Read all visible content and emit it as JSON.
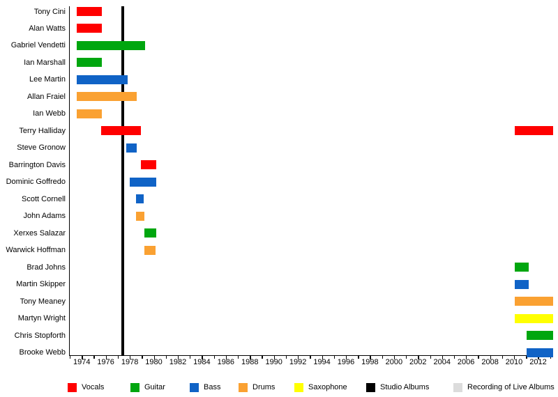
{
  "chart_data": {
    "type": "bar",
    "subtype": "gantt-member-timeline",
    "title": "",
    "xlabel": "",
    "ylabel": "",
    "grid": false,
    "legend_position": "bottom",
    "xlim": [
      1973,
      2013.25
    ],
    "x_minor_tick_interval": 1,
    "x_major_ticks": [
      1974,
      1976,
      1978,
      1980,
      1982,
      1984,
      1986,
      1988,
      1990,
      1992,
      1994,
      1996,
      1998,
      2000,
      2002,
      2004,
      2006,
      2008,
      2010,
      2012
    ],
    "colors": {
      "Vocals": "#FF0000",
      "Guitar": "#00A60F",
      "Bass": "#1063C6",
      "Drums": "#FAA132",
      "Saxophone": "#FFFF00",
      "Studio Albums": "#000000",
      "Recording of Live Albums": "#DCDCDC"
    },
    "legend": [
      {
        "label": "Vocals",
        "color": "#FF0000"
      },
      {
        "label": "Guitar",
        "color": "#00A60F"
      },
      {
        "label": "Bass",
        "color": "#1063C6"
      },
      {
        "label": "Drums",
        "color": "#FAA132"
      },
      {
        "label": "Saxophone",
        "color": "#FFFF00"
      },
      {
        "label": "Studio Albums",
        "color": "#000000"
      },
      {
        "label": "Recording of Live Albums",
        "color": "#DCDCDC"
      }
    ],
    "album_lines": [
      {
        "type": "Studio Albums",
        "year": 1977.4
      }
    ],
    "rows": [
      {
        "name": "Tony Cini",
        "segments": [
          {
            "role": "Vocals",
            "start": 1973.6,
            "end": 1975.7
          }
        ]
      },
      {
        "name": "Alan Watts",
        "segments": [
          {
            "role": "Vocals",
            "start": 1973.6,
            "end": 1975.7
          }
        ]
      },
      {
        "name": "Gabriel Vendetti",
        "segments": [
          {
            "role": "Guitar",
            "start": 1973.6,
            "end": 1979.25
          }
        ]
      },
      {
        "name": "Ian Marshall",
        "segments": [
          {
            "role": "Guitar",
            "start": 1973.6,
            "end": 1975.7
          }
        ]
      },
      {
        "name": "Lee Martin",
        "segments": [
          {
            "role": "Bass",
            "start": 1973.6,
            "end": 1977.8
          }
        ]
      },
      {
        "name": "Allan Fraiel",
        "segments": [
          {
            "role": "Drums",
            "start": 1973.6,
            "end": 1978.55
          }
        ]
      },
      {
        "name": "Ian Webb",
        "segments": [
          {
            "role": "Drums",
            "start": 1973.6,
            "end": 1975.65
          }
        ]
      },
      {
        "name": "Terry Halliday",
        "segments": [
          {
            "role": "Vocals",
            "start": 1975.6,
            "end": 1978.95
          },
          {
            "role": "Vocals",
            "start": 2010.05,
            "end": 2013.25
          }
        ]
      },
      {
        "name": "Steve Gronow",
        "segments": [
          {
            "role": "Bass",
            "start": 1977.7,
            "end": 1978.55
          }
        ]
      },
      {
        "name": "Barrington Davis",
        "segments": [
          {
            "role": "Vocals",
            "start": 1978.95,
            "end": 1980.2
          }
        ]
      },
      {
        "name": "Dominic Goffredo",
        "segments": [
          {
            "role": "Bass",
            "start": 1978.0,
            "end": 1980.2
          }
        ]
      },
      {
        "name": "Scott Cornell",
        "segments": [
          {
            "role": "Bass",
            "start": 1978.5,
            "end": 1979.15
          }
        ]
      },
      {
        "name": "John Adams",
        "segments": [
          {
            "role": "Drums",
            "start": 1978.5,
            "end": 1979.2
          }
        ]
      },
      {
        "name": "Xerxes Salazar",
        "segments": [
          {
            "role": "Guitar",
            "start": 1979.2,
            "end": 1980.2
          }
        ]
      },
      {
        "name": "Warwick Hoffman",
        "segments": [
          {
            "role": "Drums",
            "start": 1979.2,
            "end": 1980.15
          }
        ]
      },
      {
        "name": "Brad Johns",
        "segments": [
          {
            "role": "Guitar",
            "start": 2010.05,
            "end": 2011.2
          }
        ]
      },
      {
        "name": "Martin Skipper",
        "segments": [
          {
            "role": "Bass",
            "start": 2010.05,
            "end": 2011.2
          }
        ]
      },
      {
        "name": "Tony Meaney",
        "segments": [
          {
            "role": "Drums",
            "start": 2010.05,
            "end": 2013.25
          }
        ]
      },
      {
        "name": "Martyn Wright",
        "segments": [
          {
            "role": "Saxophone",
            "start": 2010.05,
            "end": 2013.25
          }
        ]
      },
      {
        "name": "Chris Stopforth",
        "segments": [
          {
            "role": "Guitar",
            "start": 2011.05,
            "end": 2013.25
          }
        ]
      },
      {
        "name": "Brooke Webb",
        "segments": [
          {
            "role": "Bass",
            "start": 2011.05,
            "end": 2013.25
          }
        ]
      }
    ]
  }
}
